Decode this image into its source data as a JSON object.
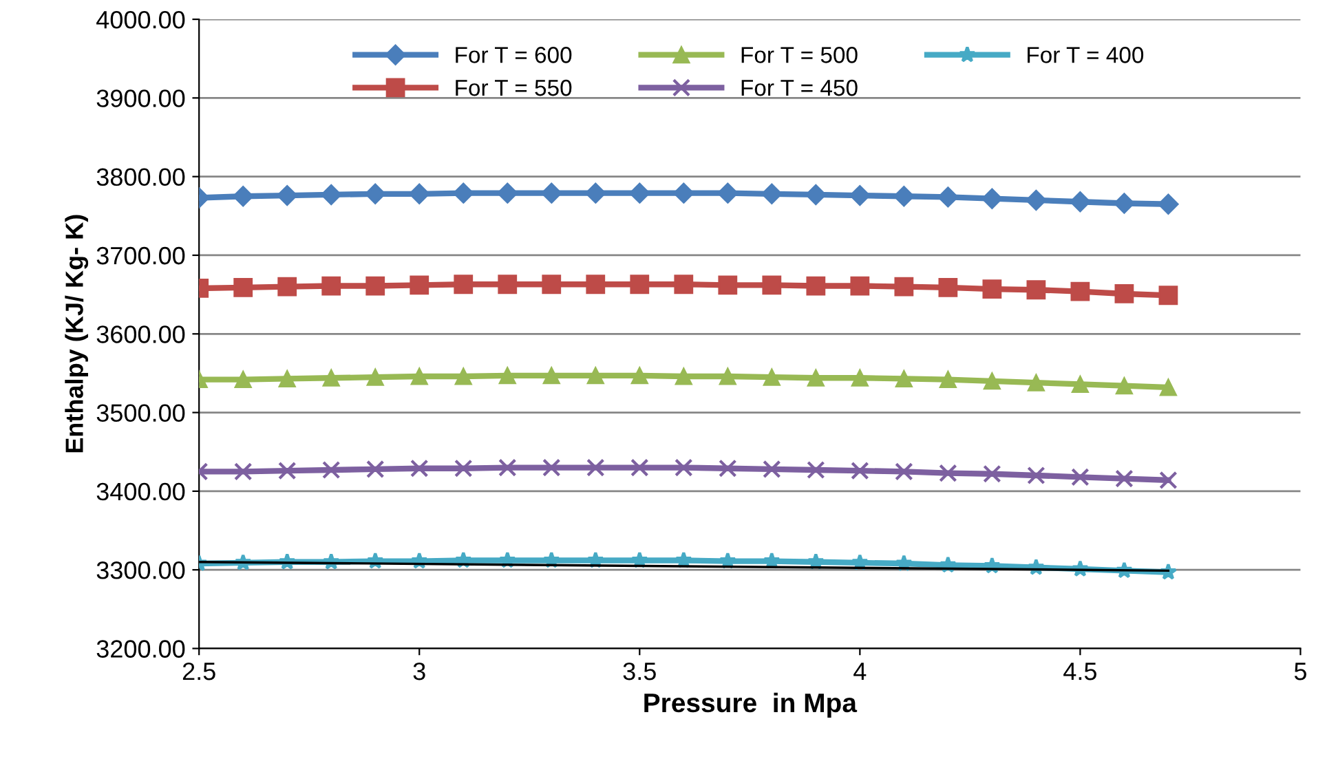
{
  "chart_data": {
    "type": "line",
    "xlabel": "Pressure  in Mpa",
    "ylabel": "Enthalpy (KJ/ Kg- K)",
    "x": [
      2.5,
      2.6,
      2.7,
      2.8,
      2.9,
      3.0,
      3.1,
      3.2,
      3.3,
      3.4,
      3.5,
      3.6,
      3.7,
      3.8,
      3.9,
      4.0,
      4.1,
      4.2,
      4.3,
      4.4,
      4.5,
      4.6,
      4.7
    ],
    "series": [
      {
        "name": "For T = 600",
        "color": "#4a7ebb",
        "marker": "diamond",
        "values": [
          3773,
          3775,
          3776,
          3777,
          3778,
          3778,
          3779,
          3779,
          3779,
          3779,
          3779,
          3779,
          3779,
          3778,
          3777,
          3776,
          3775,
          3774,
          3772,
          3770,
          3768,
          3766,
          3765
        ]
      },
      {
        "name": "For T = 550",
        "color": "#be4b48",
        "marker": "square",
        "values": [
          3658,
          3659,
          3660,
          3661,
          3661,
          3662,
          3663,
          3663,
          3663,
          3663,
          3663,
          3663,
          3662,
          3662,
          3661,
          3661,
          3660,
          3659,
          3657,
          3656,
          3654,
          3651,
          3649
        ]
      },
      {
        "name": "For T = 500",
        "color": "#98b954",
        "marker": "triangle",
        "values": [
          3542,
          3542,
          3543,
          3544,
          3545,
          3546,
          3546,
          3547,
          3547,
          3547,
          3547,
          3546,
          3546,
          3545,
          3544,
          3544,
          3543,
          3542,
          3540,
          3538,
          3536,
          3534,
          3532
        ]
      },
      {
        "name": "For T = 450",
        "color": "#7d60a0",
        "marker": "cross",
        "values": [
          3425,
          3425,
          3426,
          3427,
          3428,
          3429,
          3429,
          3430,
          3430,
          3430,
          3430,
          3430,
          3429,
          3428,
          3427,
          3426,
          3425,
          3423,
          3422,
          3420,
          3418,
          3416,
          3414
        ]
      },
      {
        "name": "For T = 400",
        "color": "#46aac5",
        "marker": "star",
        "values": [
          3308,
          3309,
          3310,
          3310,
          3311,
          3311,
          3312,
          3312,
          3312,
          3312,
          3312,
          3312,
          3311,
          3311,
          3310,
          3309,
          3308,
          3306,
          3305,
          3303,
          3301,
          3299,
          3297
        ]
      },
      {
        "color": "#000000",
        "marker": "none",
        "x": [
          2.5,
          4.7
        ],
        "values": [
          3310,
          3299
        ]
      }
    ],
    "xlim": [
      2.5,
      5
    ],
    "xticks": [
      2.5,
      3,
      3.5,
      4,
      4.5,
      5
    ],
    "ylim": [
      3200,
      4000
    ],
    "yticks": [
      {
        "value": 3200,
        "label": "3200.00"
      },
      {
        "value": 3300,
        "label": "3300.00"
      },
      {
        "value": 3400,
        "label": "3400.00"
      },
      {
        "value": 3500,
        "label": "3500.00"
      },
      {
        "value": 3600,
        "label": "3600.00"
      },
      {
        "value": 3700,
        "label": "3700.00"
      },
      {
        "value": 3800,
        "label": "3800.00"
      },
      {
        "value": 3900,
        "label": "3900.00"
      },
      {
        "value": 4000,
        "label": "4000.00"
      }
    ],
    "grid": "y",
    "legend": "top"
  }
}
